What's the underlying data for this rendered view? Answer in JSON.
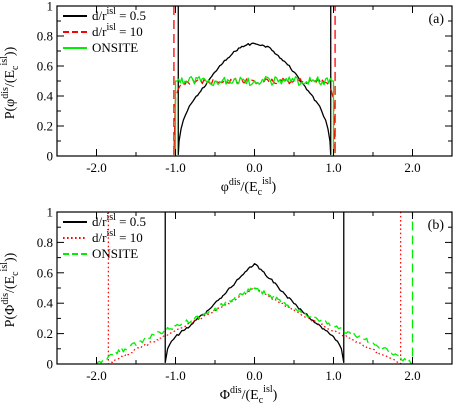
{
  "colors": {
    "black": "#000000",
    "red": "#ff0000",
    "green": "#00ee00",
    "background": "#ffffff"
  },
  "chart_data": [
    {
      "type": "line",
      "panel_label": "(a)",
      "ylabel": {
        "main": "P(φ",
        "sup1": "dis",
        "mid": "/(E",
        "sub": "c",
        "sup2": "isl",
        "end": "))"
      },
      "xlabel": {
        "main": "φ",
        "sup1": "dis",
        "mid": "/(E",
        "sub": "c",
        "sup2": "isl",
        "end": ")"
      },
      "xlim": [
        -2.5,
        2.5
      ],
      "ylim": [
        0,
        1
      ],
      "xticks": [
        -2.0,
        -1.0,
        0.0,
        1.0,
        2.0
      ],
      "xtick_labels": [
        "-2.0",
        "-1.0",
        "0.0",
        "1.0",
        "2.0"
      ],
      "yticks": [
        0,
        0.2,
        0.4,
        0.6,
        0.8,
        1
      ],
      "ytick_labels": [
        "0",
        "0.2",
        "0.4",
        "0.6",
        "0.8",
        "1"
      ],
      "legend_position": "top-left",
      "grid": false,
      "series": [
        {
          "name": "d/r^isl = 0.5",
          "legend": {
            "main": "d/r",
            "sup": "isl",
            "tail": " = 0.5"
          },
          "color": "#000000",
          "dash": "solid",
          "noise": 0.008,
          "x": [
            -0.965,
            -0.965,
            -0.955,
            -0.93,
            -0.9,
            -0.85,
            -0.8,
            -0.7,
            -0.6,
            -0.5,
            -0.4,
            -0.3,
            -0.2,
            -0.1,
            0.0,
            0.1,
            0.2,
            0.3,
            0.4,
            0.5,
            0.6,
            0.7,
            0.8,
            0.85,
            0.9,
            0.93,
            0.955,
            0.965,
            0.965
          ],
          "y": [
            1.0,
            0.01,
            0.1,
            0.18,
            0.24,
            0.3,
            0.35,
            0.42,
            0.49,
            0.56,
            0.62,
            0.67,
            0.72,
            0.74,
            0.75,
            0.74,
            0.72,
            0.67,
            0.62,
            0.56,
            0.49,
            0.42,
            0.35,
            0.3,
            0.24,
            0.18,
            0.1,
            0.01,
            1.0
          ]
        },
        {
          "name": "d/r^isl = 10",
          "legend": {
            "main": "d/r",
            "sup": "isl",
            "tail": " = 10"
          },
          "color": "#ff0000",
          "dash": "dashed",
          "noise": 0.018,
          "x": [
            -1.02,
            -1.02,
            -1.0,
            -0.97,
            -0.94,
            -0.9,
            -0.5,
            0.0,
            0.5,
            0.9,
            0.94,
            0.97,
            1.0,
            1.02,
            1.02
          ],
          "y": [
            1.0,
            0.01,
            0.38,
            0.44,
            0.47,
            0.49,
            0.5,
            0.5,
            0.5,
            0.49,
            0.47,
            0.44,
            0.38,
            0.01,
            1.0
          ]
        },
        {
          "name": "ONSITE",
          "legend": {
            "main": "ONSITE",
            "sup": "",
            "tail": ""
          },
          "color": "#00ee00",
          "dash": "solid",
          "noise": 0.03,
          "x": [
            -1.0,
            -1.0,
            -0.98,
            -0.5,
            0.0,
            0.5,
            0.98,
            1.0,
            1.0
          ],
          "y": [
            0.0,
            0.5,
            0.5,
            0.5,
            0.5,
            0.5,
            0.5,
            0.5,
            0.0
          ]
        }
      ]
    },
    {
      "type": "line",
      "panel_label": "(b)",
      "ylabel": {
        "main": "P(Φ",
        "sup1": "dis",
        "mid": "/(E",
        "sub": "c",
        "sup2": "isl",
        "end": "))"
      },
      "xlabel": {
        "main": "Φ",
        "sup1": "dis",
        "mid": "/(E",
        "sub": "c",
        "sup2": "isl",
        "end": ")"
      },
      "xlim": [
        -2.5,
        2.5
      ],
      "ylim": [
        0,
        1
      ],
      "xticks": [
        -2.0,
        -1.0,
        0.0,
        1.0,
        2.0
      ],
      "xtick_labels": [
        "-2.0",
        "-1.0",
        "0.0",
        "1.0",
        "2.0"
      ],
      "yticks": [
        0,
        0.2,
        0.4,
        0.6,
        0.8,
        1
      ],
      "ytick_labels": [
        "0",
        "0.2",
        "0.4",
        "0.6",
        "0.8",
        "1"
      ],
      "legend_position": "top-left",
      "grid": false,
      "series": [
        {
          "name": "d/r^isl = 0.5",
          "legend": {
            "main": "d/r",
            "sup": "isl",
            "tail": " = 0.5"
          },
          "color": "#000000",
          "dash": "solid",
          "noise": 0.008,
          "x": [
            -1.13,
            -1.13,
            -1.1,
            -1.05,
            -1.0,
            -0.9,
            -0.8,
            -0.6,
            -0.4,
            -0.2,
            0.0,
            0.2,
            0.4,
            0.6,
            0.8,
            0.9,
            1.0,
            1.05,
            1.1,
            1.13,
            1.13
          ],
          "y": [
            1.0,
            0.01,
            0.1,
            0.15,
            0.18,
            0.22,
            0.26,
            0.35,
            0.45,
            0.56,
            0.66,
            0.56,
            0.45,
            0.35,
            0.26,
            0.22,
            0.18,
            0.15,
            0.1,
            0.01,
            1.0
          ]
        },
        {
          "name": "d/r^isl = 10",
          "legend": {
            "main": "d/r",
            "sup": "isl",
            "tail": " = 10"
          },
          "color": "#ff0000",
          "dash": "dotted",
          "noise": 0.008,
          "x": [
            -1.85,
            -1.85,
            -1.7,
            -1.4,
            -1.0,
            -0.6,
            -0.2,
            0.0,
            0.2,
            0.6,
            1.0,
            1.4,
            1.7,
            1.85,
            1.85
          ],
          "y": [
            1.0,
            0.0,
            0.04,
            0.12,
            0.22,
            0.32,
            0.44,
            0.5,
            0.44,
            0.32,
            0.22,
            0.12,
            0.04,
            0.0,
            1.0
          ]
        },
        {
          "name": "ONSITE",
          "legend": {
            "main": "ONSITE",
            "sup": "",
            "tail": ""
          },
          "color": "#00ee00",
          "dash": "dashed",
          "noise": 0.015,
          "x": [
            -2.0,
            -2.0,
            -1.8,
            -1.4,
            -1.0,
            -0.6,
            -0.2,
            0.0,
            0.2,
            0.6,
            1.0,
            1.4,
            1.8,
            2.0,
            2.0
          ],
          "y": [
            0.0,
            0.0,
            0.06,
            0.16,
            0.25,
            0.33,
            0.45,
            0.5,
            0.45,
            0.33,
            0.25,
            0.16,
            0.06,
            0.0,
            1.0
          ]
        }
      ]
    }
  ]
}
